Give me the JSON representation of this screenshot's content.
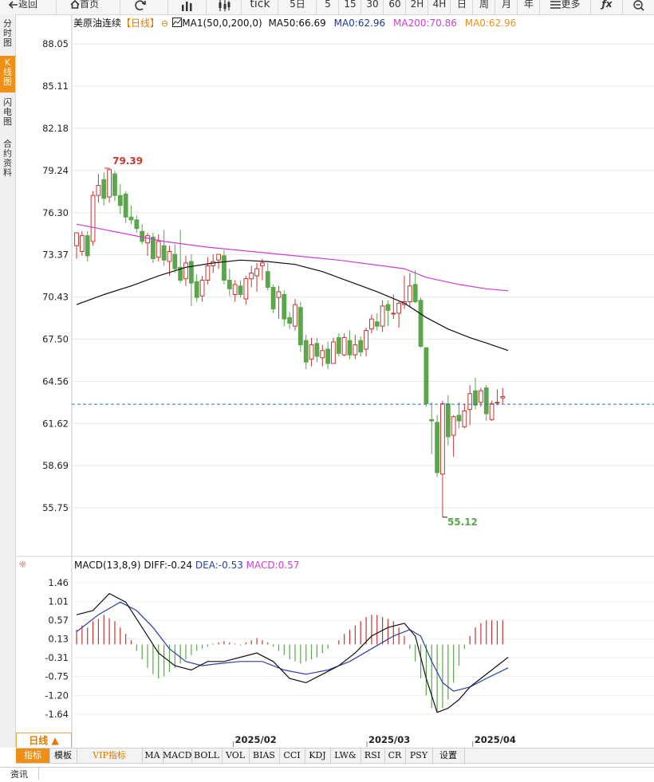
{
  "toolbar": {
    "items": [
      {
        "id": "back",
        "label": "返回",
        "icon": "back-arrow-icon"
      },
      {
        "id": "home",
        "label": "首页",
        "icon": "home-icon"
      },
      {
        "id": "refresh",
        "label": "",
        "icon": "refresh-icon"
      },
      {
        "id": "bar",
        "label": "",
        "icon": "bar-chart-icon"
      },
      {
        "id": "candle",
        "label": "",
        "icon": "candlestick-icon"
      },
      {
        "id": "tick",
        "label": "tick",
        "icon": ""
      },
      {
        "id": "d5",
        "label": "5日",
        "icon": ""
      },
      {
        "id": "m5",
        "label": "5",
        "icon": ""
      },
      {
        "id": "m15",
        "label": "15",
        "icon": ""
      },
      {
        "id": "m30",
        "label": "30",
        "icon": ""
      },
      {
        "id": "m60",
        "label": "60",
        "icon": ""
      },
      {
        "id": "h2",
        "label": "2H",
        "icon": ""
      },
      {
        "id": "h4",
        "label": "4H",
        "icon": ""
      },
      {
        "id": "day",
        "label": "日",
        "icon": ""
      },
      {
        "id": "week",
        "label": "周",
        "icon": ""
      },
      {
        "id": "month",
        "label": "月",
        "icon": ""
      },
      {
        "id": "year",
        "label": "年",
        "icon": ""
      },
      {
        "id": "more",
        "label": "更多",
        "icon": "menu-icon"
      },
      {
        "id": "fx",
        "label": "",
        "icon": "function-icon"
      },
      {
        "id": "zoom",
        "label": "",
        "icon": "zoom-out-icon"
      }
    ]
  },
  "side_tabs": [
    {
      "label": "分时图",
      "active": false
    },
    {
      "label": "K线图",
      "active": true
    },
    {
      "label": "闪电图",
      "active": false
    },
    {
      "label": "合约资料",
      "active": false
    }
  ],
  "header": {
    "name": "美原油连续",
    "period": "【日线】",
    "ma_label": "MA1(50,0,200,0)",
    "ma50": "MA50:66.69",
    "ma0": "MA0:62.96",
    "ma200": "MA200:70.86",
    "ma0b": "MA0:62.96"
  },
  "macd_header": {
    "label": "MACD(13,8,9)",
    "diff": "DIFF:-0.24",
    "dea": "DEA:-0.53",
    "macd": "MACD:0.57"
  },
  "colors": {
    "up": "#c9352f",
    "down": "#5aa64a",
    "ma50": "#111111",
    "ma200": "#d23cd6",
    "dea": "#2a3fa8",
    "current": "#2a72c8",
    "accent": "#f08f16"
  },
  "chart_data": [
    {
      "type": "candlestick",
      "title": "美原油连续",
      "ylim": [
        54.2,
        89.0
      ],
      "y_ticks": [
        88.05,
        85.11,
        82.18,
        79.24,
        76.3,
        73.37,
        70.43,
        67.5,
        64.56,
        61.62,
        58.69,
        55.75
      ],
      "x_ticks": [
        "2025/02",
        "2025/03",
        "2025/04"
      ],
      "high_label": "79.39",
      "low_label": "55.12",
      "current_price": 62.96,
      "candles": [
        [
          74.0,
          74.9,
          73.1,
          74.9
        ],
        [
          73.6,
          75.0,
          73.3,
          74.7
        ],
        [
          74.7,
          75.0,
          72.9,
          73.3
        ],
        [
          74.3,
          77.8,
          74.0,
          77.5
        ],
        [
          77.5,
          79.0,
          77.0,
          78.2
        ],
        [
          78.6,
          79.1,
          76.8,
          77.3
        ],
        [
          77.4,
          79.4,
          77.0,
          79.3
        ],
        [
          79.0,
          79.2,
          77.1,
          77.5
        ],
        [
          77.5,
          78.3,
          76.2,
          76.8
        ],
        [
          77.6,
          77.8,
          75.6,
          76.0
        ],
        [
          76.0,
          76.8,
          75.5,
          75.8
        ],
        [
          75.8,
          76.1,
          74.9,
          75.2
        ],
        [
          75.0,
          75.5,
          74.1,
          74.3
        ],
        [
          74.2,
          74.9,
          73.3,
          74.7
        ],
        [
          74.6,
          74.9,
          72.8,
          73.1
        ],
        [
          73.2,
          74.8,
          72.9,
          74.3
        ],
        [
          74.0,
          75.1,
          72.6,
          73.0
        ],
        [
          72.9,
          74.0,
          71.9,
          73.6
        ],
        [
          73.4,
          74.1,
          72.1,
          72.4
        ],
        [
          72.5,
          75.1,
          71.4,
          71.6
        ],
        [
          71.7,
          73.3,
          71.2,
          72.8
        ],
        [
          72.9,
          73.4,
          69.8,
          71.4
        ],
        [
          71.5,
          72.0,
          70.1,
          70.4
        ],
        [
          70.5,
          71.9,
          70.1,
          71.6
        ],
        [
          71.6,
          73.2,
          71.3,
          72.6
        ],
        [
          72.6,
          73.4,
          72.1,
          72.9
        ],
        [
          73.0,
          73.4,
          72.4,
          73.4
        ],
        [
          73.3,
          73.7,
          71.3,
          71.6
        ],
        [
          71.6,
          72.4,
          70.5,
          71.0
        ],
        [
          70.6,
          71.6,
          70.1,
          71.3
        ],
        [
          71.2,
          71.6,
          70.4,
          70.6
        ],
        [
          70.3,
          71.9,
          69.9,
          71.7
        ],
        [
          71.7,
          72.6,
          71.1,
          72.1
        ],
        [
          71.9,
          72.8,
          70.8,
          72.4
        ],
        [
          72.6,
          73.1,
          71.6,
          72.8
        ],
        [
          72.2,
          72.8,
          70.9,
          71.1
        ],
        [
          71.1,
          71.3,
          69.3,
          69.6
        ],
        [
          70.4,
          71.2,
          68.9,
          70.8
        ],
        [
          70.6,
          70.9,
          68.4,
          68.9
        ],
        [
          69.0,
          69.4,
          68.2,
          68.6
        ],
        [
          68.4,
          70.3,
          68.1,
          69.9
        ],
        [
          69.7,
          70.1,
          66.6,
          67.1
        ],
        [
          67.4,
          67.8,
          65.4,
          65.9
        ],
        [
          66.1,
          67.6,
          65.6,
          67.1
        ],
        [
          67.2,
          67.6,
          65.9,
          66.3
        ],
        [
          66.2,
          67.1,
          65.6,
          66.7
        ],
        [
          66.8,
          67.3,
          65.4,
          65.8
        ],
        [
          65.8,
          67.6,
          65.8,
          67.3
        ],
        [
          67.6,
          67.9,
          66.3,
          66.5
        ],
        [
          66.4,
          67.9,
          66.3,
          67.6
        ],
        [
          67.4,
          68.1,
          66.1,
          66.4
        ],
        [
          66.4,
          67.8,
          66.1,
          67.1
        ],
        [
          67.4,
          67.7,
          66.3,
          66.6
        ],
        [
          66.8,
          68.3,
          66.3,
          68.1
        ],
        [
          68.2,
          69.2,
          67.9,
          68.9
        ],
        [
          68.7,
          69.3,
          68.1,
          68.4
        ],
        [
          68.4,
          70.2,
          68.0,
          69.8
        ],
        [
          69.9,
          70.2,
          68.4,
          69.5
        ],
        [
          69.3,
          70.6,
          68.9,
          69.3
        ],
        [
          69.3,
          70.1,
          68.3,
          70.0
        ],
        [
          69.9,
          71.9,
          69.6,
          70.1
        ],
        [
          70.1,
          72.1,
          69.7,
          71.2
        ],
        [
          71.3,
          72.3,
          70.0,
          70.1
        ],
        [
          70.2,
          70.4,
          66.9,
          67.0
        ],
        [
          66.9,
          66.9,
          62.8,
          63.0
        ],
        [
          61.9,
          63.1,
          59.5,
          61.8
        ],
        [
          61.7,
          62.2,
          57.9,
          58.2
        ],
        [
          58.1,
          63.2,
          55.1,
          63.0
        ],
        [
          63.0,
          63.6,
          60.1,
          60.7
        ],
        [
          60.8,
          62.2,
          59.3,
          62.1
        ],
        [
          62.2,
          63.1,
          61.3,
          61.8
        ],
        [
          61.4,
          63.0,
          61.3,
          62.5
        ],
        [
          62.6,
          64.3,
          61.5,
          63.7
        ],
        [
          63.9,
          64.8,
          62.6,
          62.9
        ],
        [
          63.1,
          64.1,
          62.8,
          63.9
        ],
        [
          64.1,
          64.3,
          61.8,
          62.3
        ],
        [
          61.9,
          63.2,
          61.8,
          63.0
        ],
        [
          63.1,
          64.0,
          62.9,
          63.1
        ],
        [
          63.4,
          64.1,
          63.0,
          63.5
        ]
      ],
      "ma50_line": [
        [
          0,
          69.9
        ],
        [
          5,
          70.6
        ],
        [
          10,
          71.2
        ],
        [
          15,
          71.9
        ],
        [
          20,
          72.5
        ],
        [
          25,
          72.8
        ],
        [
          30,
          73.0
        ],
        [
          35,
          72.9
        ],
        [
          40,
          72.7
        ],
        [
          45,
          72.2
        ],
        [
          50,
          71.5
        ],
        [
          55,
          70.8
        ],
        [
          60,
          70.0
        ],
        [
          64,
          69.0
        ],
        [
          68,
          68.2
        ],
        [
          72,
          67.6
        ],
        [
          76,
          67.1
        ],
        [
          79,
          66.7
        ]
      ],
      "ma200_line": [
        [
          0,
          75.5
        ],
        [
          8,
          74.9
        ],
        [
          16,
          74.3
        ],
        [
          24,
          73.9
        ],
        [
          32,
          73.6
        ],
        [
          40,
          73.3
        ],
        [
          48,
          73.0
        ],
        [
          56,
          72.6
        ],
        [
          60,
          72.4
        ],
        [
          64,
          71.8
        ],
        [
          70,
          71.3
        ],
        [
          75,
          71.0
        ],
        [
          79,
          70.86
        ]
      ]
    },
    {
      "type": "macd",
      "title": "MACD(13,8,9)",
      "ylim": [
        -2.0,
        1.7
      ],
      "y_ticks": [
        1.46,
        1.01,
        0.57,
        0.13,
        -0.31,
        -0.75,
        -1.2,
        -1.64
      ],
      "histogram": [
        0.35,
        0.45,
        0.4,
        0.55,
        0.6,
        0.7,
        0.62,
        0.55,
        0.4,
        0.25,
        0.1,
        -0.15,
        -0.35,
        -0.55,
        -0.7,
        -0.8,
        -0.75,
        -0.65,
        -0.55,
        -0.45,
        -0.35,
        -0.25,
        -0.15,
        -0.1,
        -0.05,
        0.02,
        0.05,
        0.08,
        0.05,
        0.02,
        -0.02,
        0.05,
        0.1,
        0.15,
        0.1,
        0.05,
        -0.05,
        -0.15,
        -0.25,
        -0.35,
        -0.4,
        -0.45,
        -0.4,
        -0.35,
        -0.3,
        -0.2,
        -0.1,
        0.0,
        0.1,
        0.25,
        0.35,
        0.45,
        0.55,
        0.65,
        0.7,
        0.7,
        0.65,
        0.6,
        0.55,
        0.4,
        0.2,
        -0.1,
        -0.4,
        -0.8,
        -1.2,
        -1.5,
        -1.6,
        -1.5,
        -1.3,
        -0.9,
        -0.5,
        -0.1,
        0.2,
        0.4,
        0.5,
        0.57,
        0.57,
        0.56,
        0.57
      ],
      "diff_line": [
        [
          0,
          0.7
        ],
        [
          3,
          0.8
        ],
        [
          6,
          1.2
        ],
        [
          9,
          1.0
        ],
        [
          12,
          0.4
        ],
        [
          15,
          -0.2
        ],
        [
          18,
          -0.5
        ],
        [
          21,
          -0.6
        ],
        [
          24,
          -0.4
        ],
        [
          27,
          -0.4
        ],
        [
          30,
          -0.3
        ],
        [
          33,
          -0.2
        ],
        [
          36,
          -0.4
        ],
        [
          39,
          -0.8
        ],
        [
          42,
          -0.9
        ],
        [
          45,
          -0.7
        ],
        [
          48,
          -0.5
        ],
        [
          51,
          -0.2
        ],
        [
          54,
          0.2
        ],
        [
          57,
          0.4
        ],
        [
          60,
          0.5
        ],
        [
          62,
          0.2
        ],
        [
          64,
          -0.8
        ],
        [
          66,
          -1.6
        ],
        [
          68,
          -1.5
        ],
        [
          70,
          -1.3
        ],
        [
          72,
          -1.0
        ],
        [
          74,
          -0.8
        ],
        [
          76,
          -0.6
        ],
        [
          79,
          -0.3
        ]
      ],
      "dea_line": [
        [
          0,
          0.3
        ],
        [
          4,
          0.7
        ],
        [
          8,
          1.0
        ],
        [
          11,
          0.8
        ],
        [
          14,
          0.4
        ],
        [
          17,
          -0.1
        ],
        [
          20,
          -0.4
        ],
        [
          23,
          -0.5
        ],
        [
          26,
          -0.45
        ],
        [
          30,
          -0.4
        ],
        [
          34,
          -0.4
        ],
        [
          38,
          -0.6
        ],
        [
          42,
          -0.7
        ],
        [
          46,
          -0.6
        ],
        [
          50,
          -0.4
        ],
        [
          54,
          -0.1
        ],
        [
          58,
          0.2
        ],
        [
          61,
          0.35
        ],
        [
          63,
          0.2
        ],
        [
          65,
          -0.4
        ],
        [
          67,
          -0.9
        ],
        [
          69,
          -1.1
        ],
        [
          72,
          -1.0
        ],
        [
          75,
          -0.8
        ],
        [
          79,
          -0.55
        ]
      ]
    }
  ],
  "bottom": {
    "period_label": "日线 ▲",
    "tabs": [
      "指标",
      "模板",
      "VIP指标",
      "MA",
      "MACD",
      "BOLL",
      "VOL",
      "BIAS",
      "CCI",
      "KDJ",
      "LW&",
      "RSI",
      "CR",
      "PSY",
      "设置"
    ]
  },
  "footer": {
    "tab": "资讯"
  }
}
